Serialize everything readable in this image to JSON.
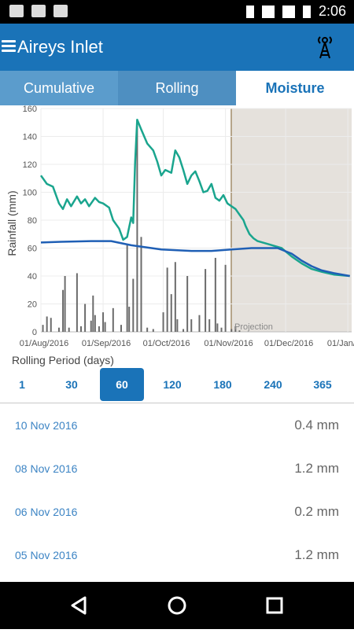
{
  "statusbar": {
    "time": "2:06"
  },
  "appbar": {
    "title": "Aireys Inlet"
  },
  "tabs": [
    {
      "label": "Cumulative"
    },
    {
      "label": "Rolling"
    },
    {
      "label": "Moisture"
    }
  ],
  "chart_data": {
    "type": "bar+line",
    "ylabel": "Rainfall (mm)",
    "ylim": [
      0,
      160
    ],
    "yticks": [
      "0",
      "20",
      "40",
      "60",
      "80",
      "100",
      "120",
      "140",
      "160"
    ],
    "xlabels": [
      "01/Aug/2016",
      "01/Sep/2016",
      "01/Oct/2016",
      "01/Nov/2016",
      "01/Dec/2016",
      "01/Jan/2017"
    ],
    "projection_label": "Projection",
    "bars": [
      {
        "day": 1,
        "value": 5
      },
      {
        "day": 3,
        "value": 11
      },
      {
        "day": 5,
        "value": 10
      },
      {
        "day": 9,
        "value": 3
      },
      {
        "day": 11,
        "value": 30
      },
      {
        "day": 12,
        "value": 40
      },
      {
        "day": 14,
        "value": 3
      },
      {
        "day": 18,
        "value": 42
      },
      {
        "day": 20,
        "value": 4
      },
      {
        "day": 22,
        "value": 20
      },
      {
        "day": 25,
        "value": 8
      },
      {
        "day": 26,
        "value": 26
      },
      {
        "day": 27,
        "value": 12
      },
      {
        "day": 29,
        "value": 4
      },
      {
        "day": 31,
        "value": 14
      },
      {
        "day": 32,
        "value": 7
      },
      {
        "day": 36,
        "value": 17
      },
      {
        "day": 40,
        "value": 5
      },
      {
        "day": 43,
        "value": 62
      },
      {
        "day": 44,
        "value": 18
      },
      {
        "day": 46,
        "value": 38
      },
      {
        "day": 48,
        "value": 152
      },
      {
        "day": 50,
        "value": 68
      },
      {
        "day": 53,
        "value": 3
      },
      {
        "day": 56,
        "value": 2
      },
      {
        "day": 61,
        "value": 14
      },
      {
        "day": 63,
        "value": 46
      },
      {
        "day": 65,
        "value": 27
      },
      {
        "day": 67,
        "value": 50
      },
      {
        "day": 68,
        "value": 9
      },
      {
        "day": 71,
        "value": 2
      },
      {
        "day": 73,
        "value": 40
      },
      {
        "day": 75,
        "value": 9
      },
      {
        "day": 79,
        "value": 12
      },
      {
        "day": 82,
        "value": 45
      },
      {
        "day": 84,
        "value": 9
      },
      {
        "day": 87,
        "value": 53
      },
      {
        "day": 88,
        "value": 6
      },
      {
        "day": 90,
        "value": 3
      },
      {
        "day": 92,
        "value": 48
      },
      {
        "day": 95,
        "value": 2
      },
      {
        "day": 97,
        "value": 4
      },
      {
        "day": 99,
        "value": 1
      }
    ],
    "series": [
      {
        "name": "",
        "color": "#1aa58e",
        "points": [
          [
            0,
            112
          ],
          [
            3,
            106
          ],
          [
            6,
            104
          ],
          [
            9,
            92
          ],
          [
            11,
            88
          ],
          [
            13,
            95
          ],
          [
            15,
            90
          ],
          [
            18,
            97
          ],
          [
            20,
            92
          ],
          [
            22,
            95
          ],
          [
            24,
            90
          ],
          [
            27,
            96
          ],
          [
            29,
            93
          ],
          [
            31,
            92
          ],
          [
            34,
            89
          ],
          [
            36,
            80
          ],
          [
            39,
            74
          ],
          [
            41,
            66
          ],
          [
            43,
            68
          ],
          [
            45,
            82
          ],
          [
            46,
            78
          ],
          [
            47,
            122
          ],
          [
            48,
            152
          ],
          [
            50,
            145
          ],
          [
            53,
            135
          ],
          [
            56,
            130
          ],
          [
            58,
            122
          ],
          [
            60,
            112
          ],
          [
            62,
            116
          ],
          [
            65,
            114
          ],
          [
            67,
            130
          ],
          [
            69,
            125
          ],
          [
            71,
            116
          ],
          [
            73,
            106
          ],
          [
            75,
            112
          ],
          [
            77,
            115
          ],
          [
            79,
            108
          ],
          [
            81,
            100
          ],
          [
            83,
            101
          ],
          [
            85,
            106
          ],
          [
            87,
            96
          ],
          [
            89,
            94
          ],
          [
            91,
            98
          ],
          [
            93,
            92
          ],
          [
            95,
            90
          ],
          [
            97,
            88
          ],
          [
            99,
            84
          ],
          [
            101,
            80
          ],
          [
            102,
            76
          ],
          [
            104,
            70
          ],
          [
            106,
            67
          ],
          [
            108,
            65
          ],
          [
            113,
            63
          ],
          [
            120,
            60
          ],
          [
            125,
            54
          ],
          [
            130,
            49
          ],
          [
            135,
            45
          ],
          [
            140,
            43
          ],
          [
            146,
            41
          ],
          [
            154,
            40
          ]
        ]
      },
      {
        "name": "",
        "color": "#1f5fb5",
        "points": [
          [
            0,
            64
          ],
          [
            10,
            64.5
          ],
          [
            25,
            65
          ],
          [
            35,
            65
          ],
          [
            45,
            62
          ],
          [
            60,
            59
          ],
          [
            75,
            58
          ],
          [
            85,
            58
          ],
          [
            95,
            59
          ],
          [
            105,
            60
          ],
          [
            118,
            60
          ],
          [
            125,
            56
          ],
          [
            130,
            51
          ],
          [
            135,
            47
          ],
          [
            140,
            44
          ],
          [
            146,
            42
          ],
          [
            154,
            40
          ]
        ]
      }
    ]
  },
  "rolling": {
    "label": "Rolling Period (days)",
    "options": [
      "1",
      "30",
      "60",
      "120",
      "180",
      "240",
      "365"
    ],
    "selected": "60"
  },
  "records": [
    {
      "date": "10 Nov 2016",
      "value": "0.4 mm"
    },
    {
      "date": "08 Nov 2016",
      "value": "1.2 mm"
    },
    {
      "date": "06 Nov 2016",
      "value": "0.2 mm"
    },
    {
      "date": "05 Nov 2016",
      "value": "1.2 mm"
    }
  ]
}
